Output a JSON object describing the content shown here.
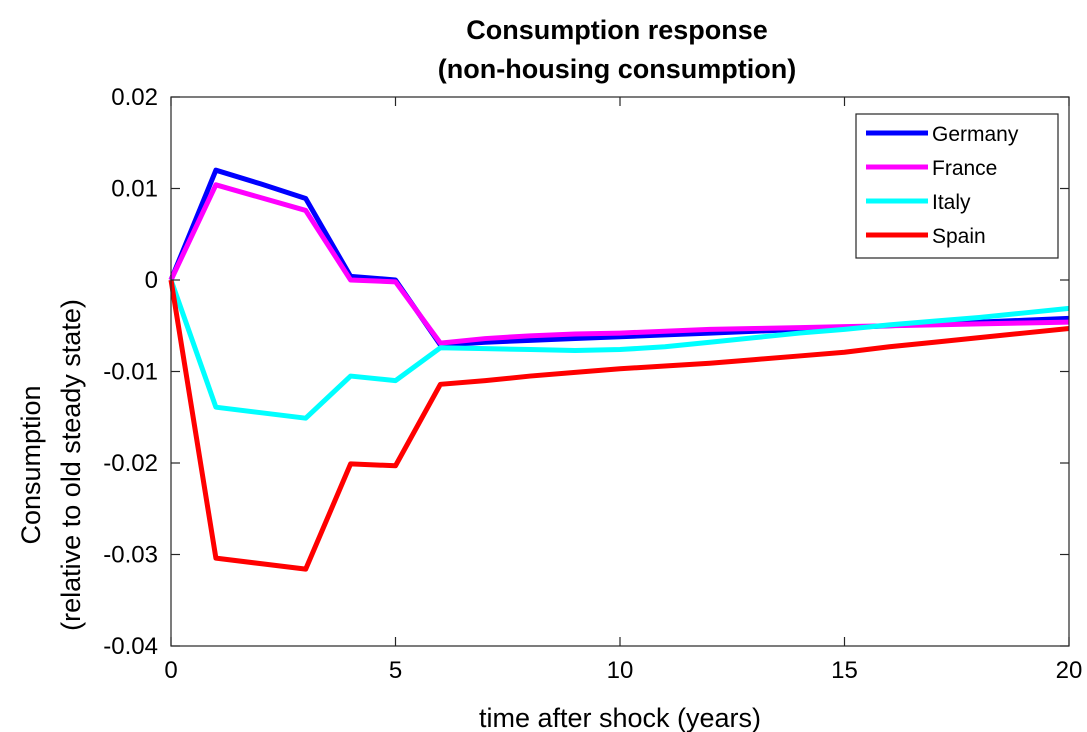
{
  "chart_data": {
    "type": "line",
    "title": [
      "Consumption response",
      "(non-housing consumption)"
    ],
    "xlabel": "time after shock (years)",
    "ylabel": [
      "Consumption",
      "(relative to old steady state)"
    ],
    "xlim": [
      0,
      20
    ],
    "ylim": [
      -0.04,
      0.02
    ],
    "xticks": [
      0,
      5,
      10,
      15,
      20
    ],
    "xtick_labels": [
      "0",
      "5",
      "10",
      "15",
      "20"
    ],
    "yticks": [
      -0.04,
      -0.03,
      -0.02,
      -0.01,
      0,
      0.01,
      0.02
    ],
    "ytick_labels": [
      "-0.04",
      "-0.03",
      "-0.02",
      "-0.01",
      "0",
      "0.01",
      "0.02"
    ],
    "grid": false,
    "legend_position": "top-right",
    "x": [
      0,
      1,
      2,
      3,
      4,
      5,
      6,
      7,
      8,
      9,
      10,
      11,
      12,
      13,
      14,
      15,
      16,
      17,
      18,
      19,
      20
    ],
    "series": [
      {
        "name": "Germany",
        "color": "#0000ff",
        "values": [
          0,
          0.012,
          0.0105,
          0.0089,
          0.0004,
          0.0,
          -0.0071,
          -0.0068,
          -0.0066,
          -0.0064,
          -0.0062,
          -0.006,
          -0.0058,
          -0.0056,
          -0.0054,
          -0.0052,
          -0.005,
          -0.0048,
          -0.0046,
          -0.0044,
          -0.0042
        ]
      },
      {
        "name": "France",
        "color": "#ff00ff",
        "values": [
          0,
          0.0104,
          0.009,
          0.0076,
          0.0,
          -0.0002,
          -0.0069,
          -0.0064,
          -0.0061,
          -0.0059,
          -0.0058,
          -0.0056,
          -0.0054,
          -0.0053,
          -0.0052,
          -0.0051,
          -0.005,
          -0.0049,
          -0.0048,
          -0.0047,
          -0.0046
        ]
      },
      {
        "name": "Italy",
        "color": "#00ffff",
        "values": [
          0,
          -0.0139,
          -0.0145,
          -0.0151,
          -0.0105,
          -0.011,
          -0.0074,
          -0.0075,
          -0.0076,
          -0.0077,
          -0.0076,
          -0.0073,
          -0.0068,
          -0.0063,
          -0.0058,
          -0.0054,
          -0.0049,
          -0.0045,
          -0.0041,
          -0.0036,
          -0.0031
        ]
      },
      {
        "name": "Spain",
        "color": "#ff0000",
        "values": [
          0,
          -0.0304,
          -0.031,
          -0.0316,
          -0.0201,
          -0.0203,
          -0.0114,
          -0.011,
          -0.0105,
          -0.0101,
          -0.0097,
          -0.0094,
          -0.0091,
          -0.0087,
          -0.0083,
          -0.0079,
          -0.0073,
          -0.0068,
          -0.0063,
          -0.0058,
          -0.0053
        ]
      }
    ]
  }
}
